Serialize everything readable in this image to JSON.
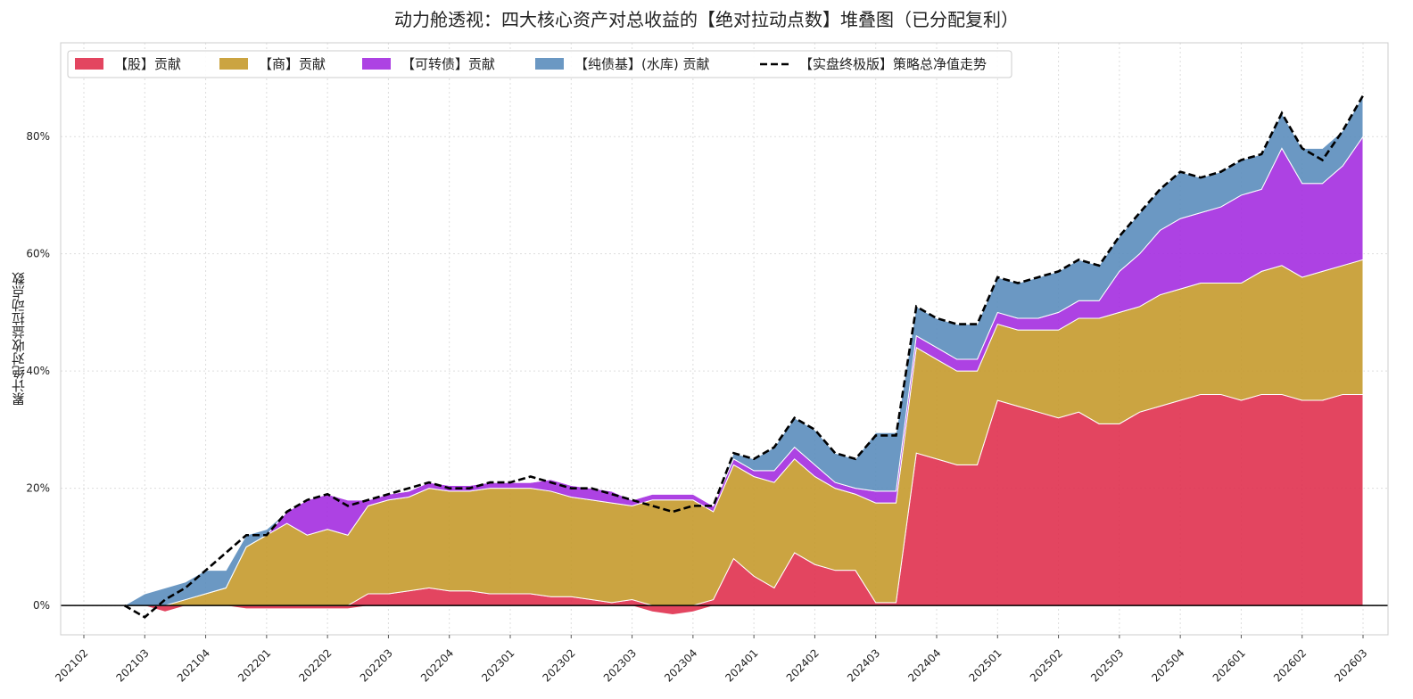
{
  "chart_data": {
    "type": "area",
    "title": "动力舱透视：四大核心资产对总收益的【绝对拉动点数】堆叠图（已分配复利）",
    "xlabel": "",
    "ylabel": "累计绝对收益拉动点数",
    "ylim": [
      -0.05,
      0.96
    ],
    "x_tick_labels": [
      "202102",
      "202103",
      "202104",
      "202201",
      "202202",
      "202203",
      "202204",
      "202301",
      "202302",
      "202303",
      "202304",
      "202401",
      "202402",
      "202403",
      "202404",
      "202501",
      "202502",
      "202503",
      "202504",
      "202601",
      "202602",
      "202603"
    ],
    "y_ticks": [
      0,
      0.2,
      0.4,
      0.6,
      0.8
    ],
    "y_tick_labels": [
      "0%",
      "20%",
      "40%",
      "60%",
      "80%"
    ],
    "grid": true,
    "legend_position": "top-left",
    "x": [
      "2021-04",
      "2021-05",
      "2021-06",
      "2021-07",
      "2021-08",
      "2021-09",
      "2021-10",
      "2021-11",
      "2021-12",
      "2022-01",
      "2022-02",
      "2022-03",
      "2022-04",
      "2022-05",
      "2022-06",
      "2022-07",
      "2022-08",
      "2022-09",
      "2022-10",
      "2022-11",
      "2022-12",
      "2023-01",
      "2023-02",
      "2023-03",
      "2023-04",
      "2023-05",
      "2023-06",
      "2023-07",
      "2023-08",
      "2023-09",
      "2023-10",
      "2023-11",
      "2023-12",
      "2024-01",
      "2024-02",
      "2024-03",
      "2024-04",
      "2024-05",
      "2024-06",
      "2024-07",
      "2024-08",
      "2024-09",
      "2024-10",
      "2024-11",
      "2024-12",
      "2025-01",
      "2025-02",
      "2025-03",
      "2025-04",
      "2025-05",
      "2025-06",
      "2025-07",
      "2025-08",
      "2025-09",
      "2025-10",
      "2025-11",
      "2025-12",
      "2026-01",
      "2026-02",
      "2026-03",
      "2026-04",
      "2026-05"
    ],
    "series": [
      {
        "name": "【股】贡献",
        "color": "#e0314f",
        "values": [
          0,
          0,
          -0.01,
          0,
          0,
          0,
          -0.005,
          -0.005,
          -0.005,
          -0.005,
          -0.005,
          -0.005,
          0.02,
          0.02,
          0.025,
          0.03,
          0.025,
          0.025,
          0.02,
          0.02,
          0.02,
          0.015,
          0.015,
          0.01,
          0.005,
          0.01,
          -0.01,
          -0.015,
          -0.01,
          0.01,
          0.08,
          0.05,
          0.03,
          0.09,
          0.07,
          0.06,
          0.06,
          0.005,
          0.005,
          0.26,
          0.25,
          0.24,
          0.24,
          0.35,
          0.34,
          0.33,
          0.32,
          0.33,
          0.31,
          0.31,
          0.33,
          0.34,
          0.35,
          0.36,
          0.36,
          0.35,
          0.36,
          0.36,
          0.35,
          0.35,
          0.36,
          0.36
        ]
      },
      {
        "name": "【商】贡献",
        "color": "#c59a2c",
        "values": [
          0,
          0,
          0,
          0.01,
          0.02,
          0.03,
          0.1,
          0.12,
          0.14,
          0.12,
          0.13,
          0.12,
          0.15,
          0.16,
          0.16,
          0.17,
          0.17,
          0.17,
          0.18,
          0.18,
          0.18,
          0.18,
          0.17,
          0.17,
          0.17,
          0.16,
          0.18,
          0.18,
          0.18,
          0.15,
          0.16,
          0.17,
          0.18,
          0.16,
          0.15,
          0.14,
          0.13,
          0.17,
          0.17,
          0.18,
          0.17,
          0.16,
          0.16,
          0.13,
          0.13,
          0.14,
          0.15,
          0.16,
          0.18,
          0.19,
          0.18,
          0.19,
          0.19,
          0.19,
          0.19,
          0.2,
          0.21,
          0.22,
          0.21,
          0.22,
          0.22,
          0.23
        ]
      },
      {
        "name": "【可转债】贡献",
        "color": "#a42ee0",
        "values": [
          0,
          0,
          0,
          0,
          0,
          0,
          0,
          0,
          0.02,
          0.06,
          0.06,
          0.06,
          0.01,
          0.01,
          0.01,
          0.01,
          0.01,
          0.01,
          0.01,
          0.01,
          0.01,
          0.02,
          0.02,
          0.02,
          0.02,
          0.01,
          0.01,
          0.01,
          0.01,
          0.01,
          0.01,
          0.01,
          0.02,
          0.02,
          0.02,
          0.01,
          0.01,
          0.02,
          0.02,
          0.02,
          0.02,
          0.02,
          0.02,
          0.02,
          0.02,
          0.02,
          0.03,
          0.03,
          0.03,
          0.07,
          0.09,
          0.11,
          0.12,
          0.12,
          0.13,
          0.15,
          0.14,
          0.2,
          0.16,
          0.15,
          0.17,
          0.21
        ]
      },
      {
        "name": "【纯债基】(水库) 贡献",
        "color": "#5b8dbd",
        "values": [
          0,
          0.02,
          0.03,
          0.03,
          0.04,
          0.03,
          0.02,
          0.01,
          0,
          0,
          0,
          0,
          0,
          0,
          0,
          0,
          0,
          0,
          0,
          0,
          0,
          0,
          0,
          0,
          0,
          0,
          0,
          0,
          0,
          0,
          0.01,
          0.02,
          0.04,
          0.05,
          0.06,
          0.05,
          0.05,
          0.1,
          0.1,
          0.05,
          0.05,
          0.06,
          0.06,
          0.06,
          0.06,
          0.07,
          0.07,
          0.07,
          0.06,
          0.06,
          0.07,
          0.07,
          0.08,
          0.06,
          0.06,
          0.06,
          0.06,
          0.06,
          0.06,
          0.06,
          0.06,
          0.07
        ]
      },
      {
        "name": "【实盘终极版】策略总净值走势",
        "color": "#000000",
        "style": "dashed",
        "values": [
          0,
          -0.02,
          0.01,
          0.03,
          0.06,
          0.09,
          0.12,
          0.12,
          0.16,
          0.18,
          0.19,
          0.17,
          0.18,
          0.19,
          0.2,
          0.21,
          0.2,
          0.2,
          0.21,
          0.21,
          0.22,
          0.21,
          0.2,
          0.2,
          0.19,
          0.18,
          0.17,
          0.16,
          0.17,
          0.17,
          0.26,
          0.25,
          0.27,
          0.32,
          0.3,
          0.26,
          0.25,
          0.29,
          0.29,
          0.51,
          0.49,
          0.48,
          0.48,
          0.56,
          0.55,
          0.56,
          0.57,
          0.59,
          0.58,
          0.63,
          0.67,
          0.71,
          0.74,
          0.73,
          0.74,
          0.76,
          0.77,
          0.84,
          0.78,
          0.76,
          0.81,
          0.87
        ]
      }
    ]
  }
}
